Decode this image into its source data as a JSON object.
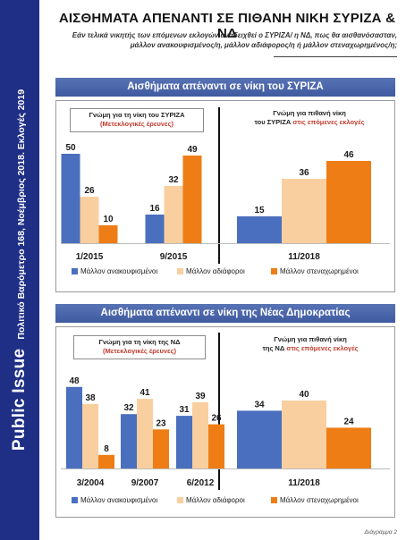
{
  "page": {
    "title": "ΑΙΣΘΗΜΑΤΑ ΑΠΕΝΑΝΤΙ ΣΕ ΠΙΘΑΝΗ ΝΙΚΗ ΣΥΡΙΖΑ & ΝΔ",
    "subtitle_line1": "Εάν τελικά νικητής των επόμενων εκλογών αναδειχθεί ο ΣΥΡΙΖΑ/ η ΝΔ, πως θα αισθανόσασταν,",
    "subtitle_line2": "μάλλον ανακουφισμένος/η, μάλλον αδιάφορος/η ή μάλλον στεναχωρημένος/η;",
    "brand": "Public Issue",
    "sidebar_text": "Πολιτικό Βαρόμετρο 168, Νοέμβριος 2018. Εκλογές 2019",
    "diagram_label": "Διάγραμμα 2",
    "colors": {
      "relieved": "#4a6fbe",
      "indifferent": "#f9cf9f",
      "upset": "#ee7d16",
      "header": "#4762a8",
      "sidebar": "#1f2f86"
    },
    "legend": [
      "Μάλλον ανακουφισμένοι",
      "Μάλλον αδιάφοροι",
      "Μάλλον στεναχωρημένοι"
    ]
  },
  "syriza": {
    "header": "Αισθήματα απέναντι σε νίκη του ΣΥΡΙΖΑ",
    "left_box_line1": "Γνώμη για τη νίκη του ΣΥΡΙΖΑ",
    "left_box_line2": "(Μετεκλογικές έρευνες)",
    "right_box_line1": "Γνώμη για πιθανή νίκη",
    "right_box_line2a": "του ΣΥΡΙΖΑ ",
    "right_box_line2b": "στις επόμενες εκλογές"
  },
  "nd": {
    "header": "Αισθήματα απέναντι σε νίκη της Νέας Δημοκρατίας",
    "left_box_line1": "Γνώμη για τη νίκη της ΝΔ",
    "left_box_line2": "(Μετεκλογικές έρευνες)",
    "right_box_line1": "Γνώμη για πιθανή νίκη",
    "right_box_line2a": "της ΝΔ ",
    "right_box_line2b": "στις επόμενες εκλογές"
  },
  "chart_data": [
    {
      "type": "bar",
      "title": "Αισθήματα απέναντι σε νίκη του ΣΥΡΙΖΑ",
      "categories": [
        "1/2015",
        "9/2015",
        "11/2018"
      ],
      "series": [
        {
          "name": "Μάλλον ανακουφισμένοι",
          "values": [
            50,
            16,
            15
          ]
        },
        {
          "name": "Μάλλον αδιάφοροι",
          "values": [
            26,
            32,
            36
          ]
        },
        {
          "name": "Μάλλον στεναχωρημένοι",
          "values": [
            10,
            49,
            46
          ]
        }
      ],
      "ylim": [
        0,
        60
      ],
      "grid": false,
      "legend_position": "bottom"
    },
    {
      "type": "bar",
      "title": "Αισθήματα απέναντι σε νίκη της Νέας Δημοκρατίας",
      "categories": [
        "3/2004",
        "9/2007",
        "6/2012",
        "11/2018"
      ],
      "series": [
        {
          "name": "Μάλλον ανακουφισμένοι",
          "values": [
            48,
            32,
            31,
            34
          ]
        },
        {
          "name": "Μάλλον αδιάφοροι",
          "values": [
            38,
            41,
            39,
            40
          ]
        },
        {
          "name": "Μάλλον στεναχωρημένοι",
          "values": [
            8,
            23,
            26,
            24
          ]
        }
      ],
      "ylim": [
        0,
        60
      ],
      "grid": false,
      "legend_position": "bottom"
    }
  ]
}
